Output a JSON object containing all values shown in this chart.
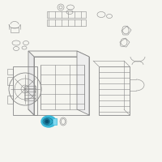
{
  "background_color": "#f5f5f0",
  "line_color": "#888888",
  "highlight_color": "#3ab8d8",
  "highlight_dark": "#1a7090",
  "highlight_light": "#80d8f0",
  "fig_width": 2.0,
  "fig_height": 2.0,
  "dpi": 100,
  "lw_main": 0.6,
  "lw_thin": 0.4
}
